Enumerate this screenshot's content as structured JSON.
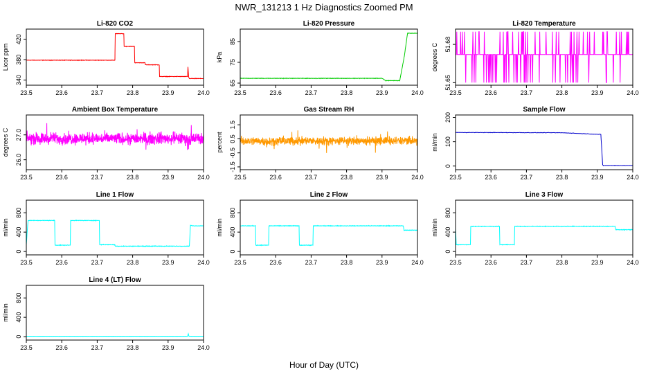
{
  "title": "NWR_131213  1 Hz Diagnostics Zoomed PM",
  "xlabel": "Hour of Day (UTC)",
  "chart_data": [
    {
      "id": "co2",
      "type": "line",
      "title": "Li-820 CO2",
      "ylabel": "Licor ppm",
      "color": "#ff0000",
      "xlim": [
        23.5,
        24.0
      ],
      "ylim": [
        330,
        440
      ],
      "xticks": [
        "23.5",
        "23.6",
        "23.7",
        "23.8",
        "23.9",
        "24.0"
      ],
      "yticks": [
        "340",
        "380",
        "420"
      ],
      "x": [
        23.5,
        23.75,
        23.751,
        23.775,
        23.776,
        23.805,
        23.806,
        23.835,
        23.836,
        23.875,
        23.876,
        23.955,
        23.956,
        23.958,
        23.96,
        24.0
      ],
      "y": [
        379,
        379,
        431,
        431,
        406,
        406,
        374,
        374,
        370,
        370,
        347,
        347,
        366,
        346,
        343,
        343
      ],
      "noise": 0.6
    },
    {
      "id": "pressure",
      "type": "line",
      "title": "Li-820 Pressure",
      "ylabel": "kPa",
      "color": "#00cc00",
      "xlim": [
        23.5,
        24.0
      ],
      "ylim": [
        64,
        91
      ],
      "xticks": [
        "23.5",
        "23.6",
        "23.7",
        "23.8",
        "23.9",
        "24.0"
      ],
      "yticks": [
        "65",
        "75",
        "85"
      ],
      "x": [
        23.5,
        23.9,
        23.91,
        23.95,
        23.963,
        23.972,
        24.0
      ],
      "y": [
        67.3,
        67.3,
        66.2,
        66.2,
        78,
        89,
        89
      ],
      "noise": 0.15
    },
    {
      "id": "temperature",
      "type": "line",
      "title": "Li-820 Temperature",
      "ylabel": "degrees C",
      "color": "#ff00ff",
      "xlim": [
        23.5,
        24.0
      ],
      "ylim": [
        51.648,
        51.692
      ],
      "xticks": [
        "23.5",
        "23.6",
        "23.7",
        "23.8",
        "23.9",
        "24.0"
      ],
      "yticks": [
        "51.65",
        "51.68"
      ],
      "levels": [
        51.65,
        51.672,
        51.69
      ],
      "base": 51.672
    },
    {
      "id": "ambient",
      "type": "line",
      "title": "Ambient Box Temperature",
      "ylabel": "degrees C",
      "color": "#ff00ff",
      "xlim": [
        23.5,
        24.0
      ],
      "ylim": [
        25.6,
        27.8
      ],
      "xticks": [
        "23.5",
        "23.6",
        "23.7",
        "23.8",
        "23.9",
        "24.0"
      ],
      "yticks": [
        "26.0",
        "27.0"
      ],
      "mean": 26.85,
      "spread": 0.35
    },
    {
      "id": "rh",
      "type": "line",
      "title": "Gas Stream RH",
      "ylabel": "percent",
      "color": "#ff9900",
      "xlim": [
        23.5,
        24.0
      ],
      "ylim": [
        -1.7,
        2.2
      ],
      "xticks": [
        "23.5",
        "23.6",
        "23.7",
        "23.8",
        "23.9",
        "24.0"
      ],
      "yticks": [
        "-1.5",
        "-0.5",
        "0.5",
        "1.5"
      ],
      "mean": 0.35,
      "spread": 0.45
    },
    {
      "id": "sample",
      "type": "line",
      "title": "Sample Flow",
      "ylabel": "ml/min",
      "color": "#0000cc",
      "xlim": [
        23.5,
        24.0
      ],
      "ylim": [
        -15,
        210
      ],
      "xticks": [
        "23.5",
        "23.6",
        "23.7",
        "23.8",
        "23.9",
        "24.0"
      ],
      "yticks": [
        "0",
        "100",
        "200"
      ],
      "x": [
        23.5,
        23.8,
        23.91,
        23.915,
        23.917,
        24.0
      ],
      "y": [
        138,
        137,
        130,
        5,
        2,
        2
      ],
      "noise": 1.2
    },
    {
      "id": "line1",
      "type": "line",
      "title": "Line 1 Flow",
      "ylabel": "ml/min",
      "color": "#00ffff",
      "xlim": [
        23.5,
        24.0
      ],
      "ylim": [
        -70,
        1060
      ],
      "xticks": [
        "23.5",
        "23.6",
        "23.7",
        "23.8",
        "23.9",
        "24.0"
      ],
      "yticks": [
        "0",
        "400",
        "800"
      ],
      "x": [
        23.5,
        23.503,
        23.505,
        23.58,
        23.581,
        23.624,
        23.625,
        23.706,
        23.707,
        23.75,
        23.751,
        23.96,
        23.963,
        23.97,
        24.0
      ],
      "y": [
        140,
        450,
        640,
        640,
        130,
        130,
        640,
        640,
        140,
        140,
        110,
        110,
        540,
        530,
        530
      ],
      "noise": 8
    },
    {
      "id": "line2",
      "type": "line",
      "title": "Line 2 Flow",
      "ylabel": "ml/min",
      "color": "#00ffff",
      "xlim": [
        23.5,
        24.0
      ],
      "ylim": [
        -70,
        1060
      ],
      "xticks": [
        "23.5",
        "23.6",
        "23.7",
        "23.8",
        "23.9",
        "24.0"
      ],
      "yticks": [
        "0",
        "400",
        "800"
      ],
      "x": [
        23.5,
        23.543,
        23.544,
        23.58,
        23.581,
        23.666,
        23.667,
        23.705,
        23.706,
        23.96,
        23.962,
        24.0
      ],
      "y": [
        530,
        530,
        130,
        130,
        530,
        530,
        130,
        130,
        530,
        530,
        440,
        440
      ],
      "noise": 8
    },
    {
      "id": "line3",
      "type": "line",
      "title": "Line 3 Flow",
      "ylabel": "ml/min",
      "color": "#00ffff",
      "xlim": [
        23.5,
        24.0
      ],
      "ylim": [
        -70,
        1060
      ],
      "xticks": [
        "23.5",
        "23.6",
        "23.7",
        "23.8",
        "23.9",
        "24.0"
      ],
      "yticks": [
        "0",
        "400",
        "800"
      ],
      "x": [
        23.5,
        23.502,
        23.504,
        23.542,
        23.543,
        23.624,
        23.625,
        23.666,
        23.667,
        23.95,
        23.952,
        24.0
      ],
      "y": [
        480,
        140,
        140,
        140,
        520,
        520,
        140,
        140,
        520,
        520,
        450,
        450
      ],
      "noise": 8
    },
    {
      "id": "line4",
      "type": "line",
      "title": "Line 4 (LT) Flow",
      "ylabel": "ml/min",
      "color": "#00ffff",
      "xlim": [
        23.5,
        24.0
      ],
      "ylim": [
        -70,
        1060
      ],
      "xticks": [
        "23.5",
        "23.6",
        "23.7",
        "23.8",
        "23.9",
        "24.0"
      ],
      "yticks": [
        "0",
        "400",
        "800"
      ],
      "x": [
        23.5,
        23.955,
        23.957,
        23.959,
        23.962,
        24.0
      ],
      "y": [
        8,
        8,
        60,
        8,
        8,
        8
      ],
      "noise": 1.5
    }
  ]
}
